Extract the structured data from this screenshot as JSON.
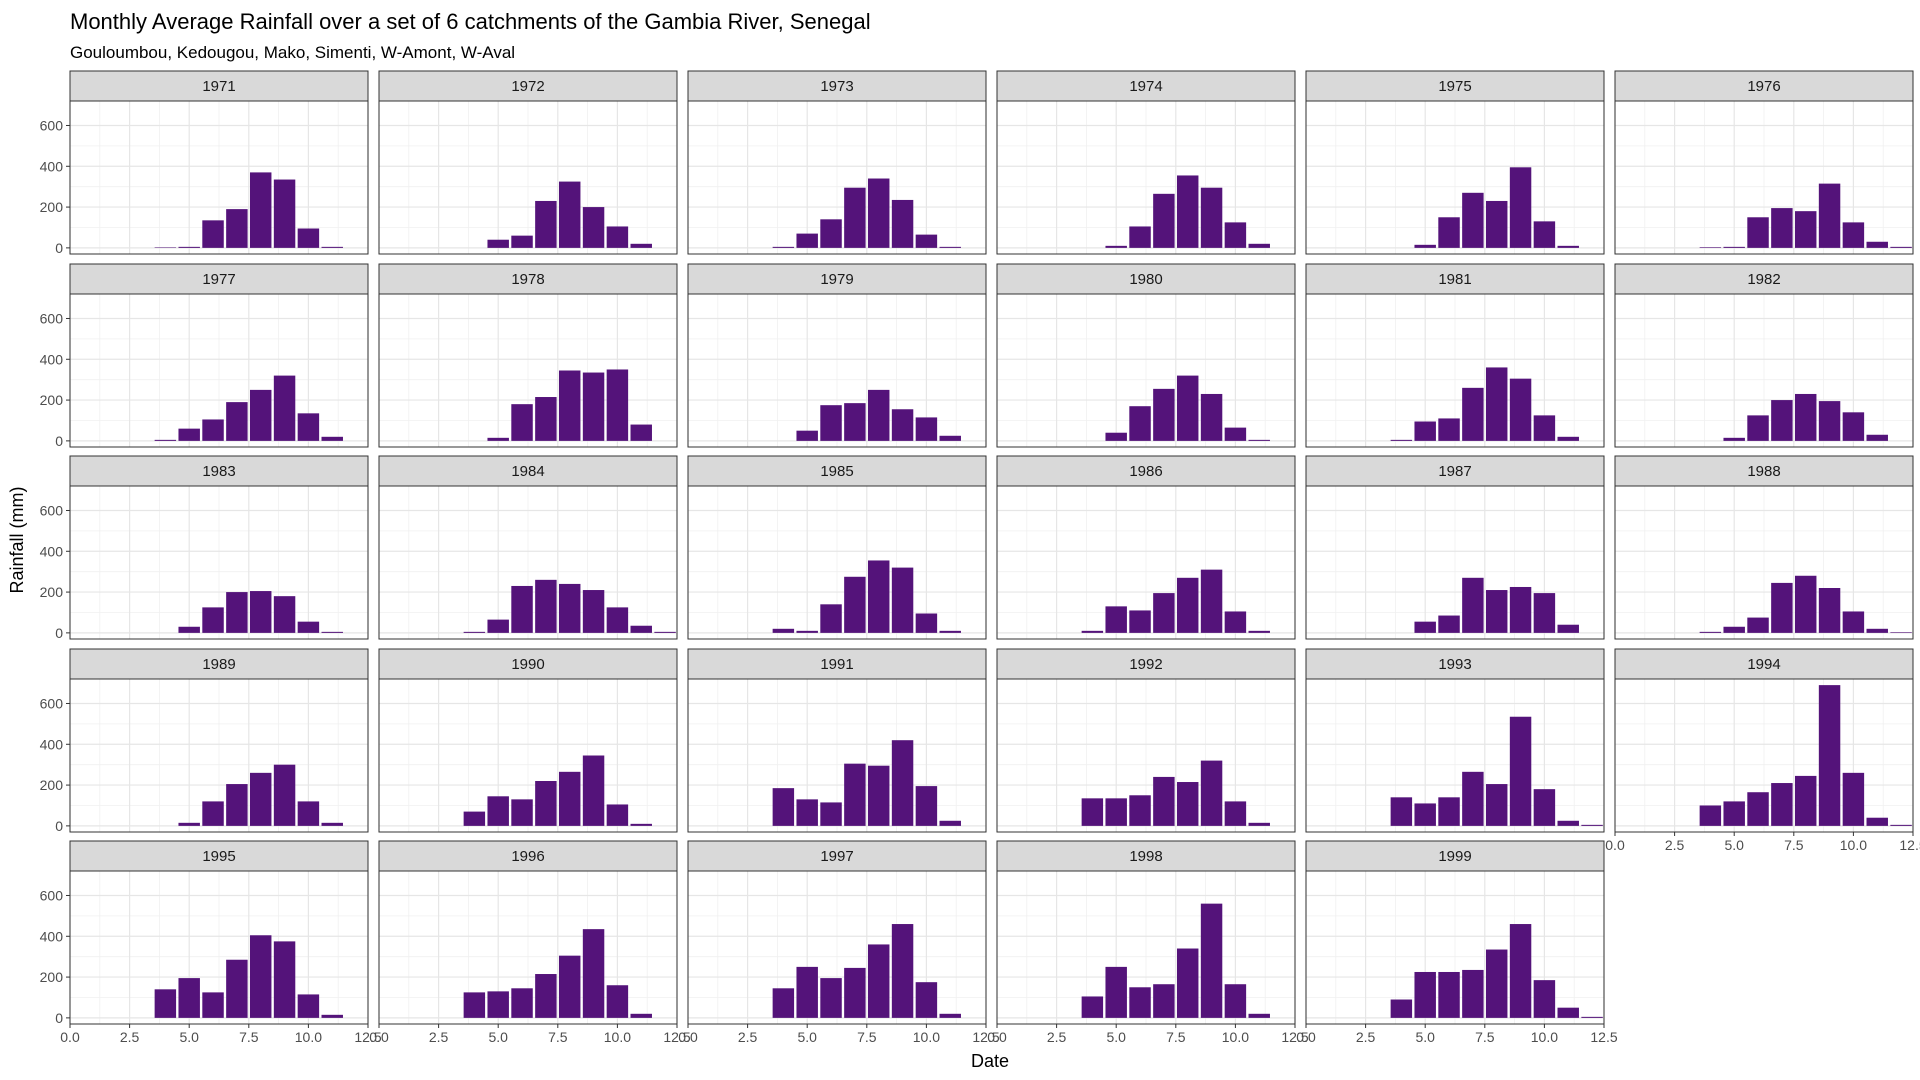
{
  "chart_data": {
    "type": "bar",
    "title": "Monthly Average Rainfall over a set of 6 catchments of the Gambia River, Senegal",
    "subtitle": "Gouloumbou, Kedougou, Mako, Simenti, W-Amont, W-Aval",
    "xlabel": "Date",
    "ylabel": "Rainfall (mm)",
    "xlim": [
      0,
      12.5
    ],
    "ylim": [
      -30,
      720
    ],
    "x_ticks": [
      "0.0",
      "2.5",
      "5.0",
      "7.5",
      "10.0",
      "12.5"
    ],
    "y_ticks": [
      "0",
      "200",
      "400",
      "600"
    ],
    "grid": true,
    "bar_color": "#54137a",
    "months": [
      1,
      2,
      3,
      4,
      5,
      6,
      7,
      8,
      9,
      10,
      11,
      12
    ],
    "panels": [
      {
        "year": "1971",
        "values": [
          0,
          0,
          0,
          2,
          5,
          135,
          190,
          370,
          335,
          95,
          5,
          0
        ]
      },
      {
        "year": "1972",
        "values": [
          0,
          0,
          0,
          0,
          40,
          60,
          230,
          325,
          200,
          105,
          20,
          0
        ]
      },
      {
        "year": "1973",
        "values": [
          0,
          0,
          0,
          5,
          70,
          140,
          295,
          340,
          235,
          65,
          5,
          0
        ]
      },
      {
        "year": "1974",
        "values": [
          0,
          0,
          0,
          0,
          10,
          105,
          265,
          355,
          295,
          125,
          20,
          0
        ]
      },
      {
        "year": "1975",
        "values": [
          0,
          0,
          0,
          0,
          15,
          150,
          270,
          230,
          395,
          130,
          10,
          0
        ]
      },
      {
        "year": "1976",
        "values": [
          0,
          0,
          0,
          3,
          5,
          150,
          195,
          180,
          315,
          125,
          30,
          5
        ]
      },
      {
        "year": "1977",
        "values": [
          0,
          0,
          0,
          5,
          60,
          105,
          190,
          250,
          320,
          135,
          20,
          0
        ]
      },
      {
        "year": "1978",
        "values": [
          0,
          0,
          0,
          0,
          15,
          180,
          215,
          345,
          335,
          350,
          80,
          0
        ]
      },
      {
        "year": "1979",
        "values": [
          0,
          0,
          0,
          0,
          50,
          175,
          185,
          250,
          155,
          115,
          25,
          0
        ]
      },
      {
        "year": "1980",
        "values": [
          0,
          0,
          0,
          0,
          40,
          170,
          255,
          320,
          230,
          65,
          5,
          0
        ]
      },
      {
        "year": "1981",
        "values": [
          0,
          0,
          0,
          5,
          95,
          110,
          260,
          360,
          305,
          125,
          20,
          0
        ]
      },
      {
        "year": "1982",
        "values": [
          0,
          0,
          0,
          0,
          15,
          125,
          200,
          230,
          195,
          140,
          30,
          0
        ]
      },
      {
        "year": "1983",
        "values": [
          0,
          0,
          0,
          0,
          30,
          125,
          200,
          205,
          180,
          55,
          5,
          0
        ]
      },
      {
        "year": "1984",
        "values": [
          0,
          0,
          0,
          5,
          65,
          230,
          260,
          240,
          210,
          125,
          35,
          5
        ]
      },
      {
        "year": "1985",
        "values": [
          0,
          0,
          0,
          20,
          10,
          140,
          275,
          355,
          320,
          95,
          10,
          0
        ]
      },
      {
        "year": "1986",
        "values": [
          0,
          0,
          0,
          10,
          130,
          110,
          195,
          270,
          310,
          105,
          10,
          0
        ]
      },
      {
        "year": "1987",
        "values": [
          0,
          0,
          0,
          0,
          55,
          85,
          270,
          210,
          225,
          195,
          40,
          0
        ]
      },
      {
        "year": "1988",
        "values": [
          0,
          0,
          0,
          5,
          30,
          75,
          245,
          280,
          220,
          105,
          20,
          3
        ]
      },
      {
        "year": "1989",
        "values": [
          0,
          0,
          0,
          0,
          15,
          120,
          205,
          260,
          300,
          120,
          15,
          0
        ]
      },
      {
        "year": "1990",
        "values": [
          0,
          0,
          0,
          70,
          145,
          130,
          220,
          265,
          345,
          105,
          10,
          0
        ]
      },
      {
        "year": "1991",
        "values": [
          0,
          0,
          0,
          185,
          130,
          115,
          305,
          295,
          420,
          195,
          25,
          0
        ]
      },
      {
        "year": "1992",
        "values": [
          0,
          0,
          0,
          135,
          135,
          150,
          240,
          215,
          320,
          120,
          15,
          0
        ]
      },
      {
        "year": "1993",
        "values": [
          0,
          0,
          0,
          140,
          110,
          140,
          265,
          205,
          535,
          180,
          25,
          5
        ]
      },
      {
        "year": "1994",
        "values": [
          0,
          0,
          0,
          100,
          120,
          165,
          210,
          245,
          690,
          260,
          40,
          5
        ]
      },
      {
        "year": "1995",
        "values": [
          0,
          0,
          0,
          140,
          195,
          125,
          285,
          405,
          375,
          115,
          15,
          0
        ]
      },
      {
        "year": "1996",
        "values": [
          0,
          0,
          0,
          125,
          130,
          145,
          215,
          305,
          435,
          160,
          20,
          0
        ]
      },
      {
        "year": "1997",
        "values": [
          0,
          0,
          0,
          145,
          250,
          195,
          245,
          360,
          460,
          175,
          20,
          0
        ]
      },
      {
        "year": "1998",
        "values": [
          0,
          0,
          0,
          105,
          250,
          150,
          165,
          340,
          560,
          165,
          20,
          0
        ]
      },
      {
        "year": "1999",
        "values": [
          0,
          0,
          0,
          90,
          225,
          225,
          235,
          335,
          460,
          185,
          50,
          5
        ]
      }
    ]
  }
}
